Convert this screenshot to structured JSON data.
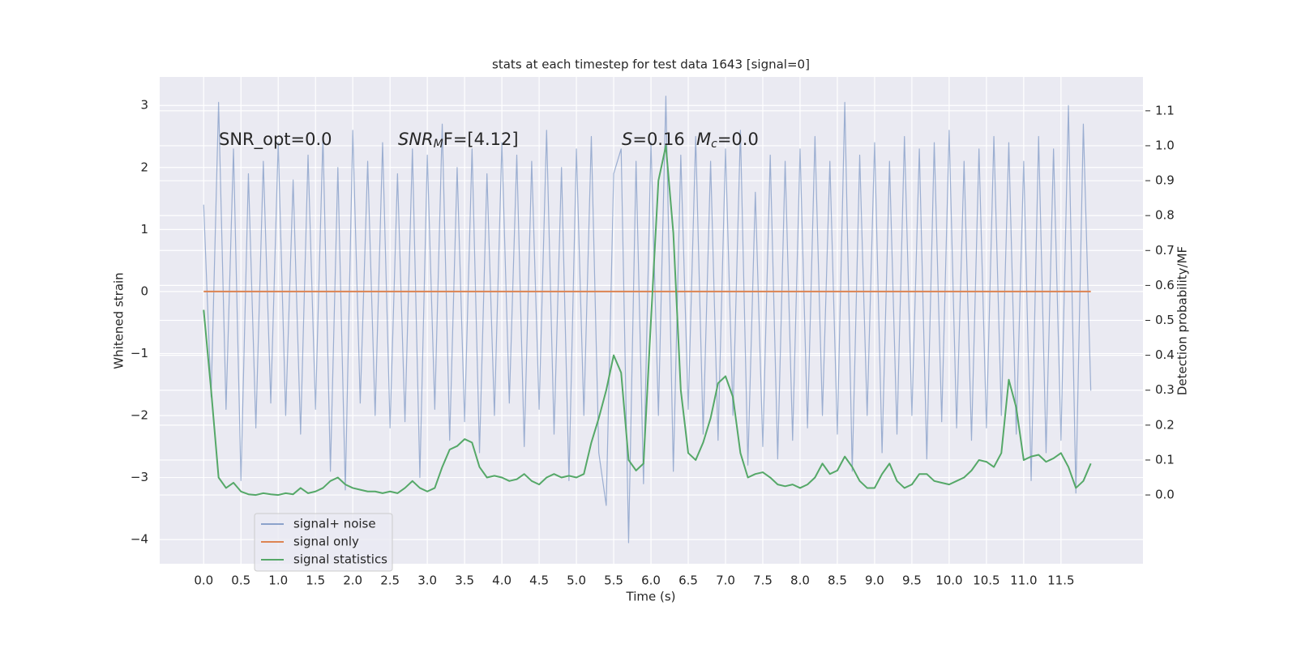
{
  "chart_data": {
    "type": "line",
    "title": "stats at each timestep for test data 1643 [signal=0]",
    "xlabel": "Time (s)",
    "ylabel": "Whitened strain",
    "y2label": "Detection probability/MF",
    "annotations": [
      [
        "SNR_opt=0.0"
      ],
      [
        "SNR",
        "M",
        "F=[4.12]"
      ],
      [
        "S",
        "=0.16"
      ],
      [
        "M",
        "c",
        "=0.0"
      ]
    ],
    "grid": true,
    "legend": "lower left",
    "xlim": [
      -0.59,
      12.6
    ],
    "ylim": [
      -4.39,
      3.46
    ],
    "y2lim": [
      -0.197,
      1.197
    ],
    "xticks": [
      {
        "value": 0,
        "label": "0.0"
      },
      0.5,
      {
        "value": 1,
        "label": "1.0"
      },
      1.5,
      {
        "value": 2,
        "label": "2.0"
      },
      2.5,
      {
        "value": 3,
        "label": "3.0"
      },
      3.5,
      {
        "value": 4,
        "label": "4.0"
      },
      4.5,
      {
        "value": 5,
        "label": "5.0"
      },
      5.5,
      {
        "value": 6,
        "label": "6.0"
      },
      6.5,
      {
        "value": 7,
        "label": "7.0"
      },
      7.5,
      {
        "value": 8,
        "label": "8.0"
      },
      8.5,
      {
        "value": 9,
        "label": "9.0"
      },
      9.5,
      {
        "value": 10,
        "label": "10.0"
      },
      10.5,
      {
        "value": 11,
        "label": "11.0"
      },
      11.5
    ],
    "yticks": [
      {
        "value": -4,
        "label": "−4"
      },
      {
        "value": -3,
        "label": "−3"
      },
      {
        "value": -2,
        "label": "−2"
      },
      {
        "value": -1,
        "label": "−1"
      },
      0,
      1,
      2,
      3
    ],
    "y2ticks": [
      {
        "value": 0,
        "label": "0.0"
      },
      0.1,
      0.2,
      0.3,
      0.4,
      0.5,
      0.6,
      0.7,
      0.8,
      0.9,
      {
        "value": 1,
        "label": "1.0"
      },
      1.1
    ],
    "x": [
      0,
      0.1,
      0.2,
      0.3,
      0.4,
      0.5,
      0.6,
      0.7,
      0.8,
      0.9,
      1,
      1.1,
      1.2,
      1.3,
      1.4,
      1.5,
      1.6,
      1.7,
      1.8,
      1.9,
      2,
      2.1,
      2.2,
      2.3,
      2.4,
      2.5,
      2.6,
      2.7,
      2.8,
      2.9,
      3,
      3.1,
      3.2,
      3.3,
      3.4,
      3.5,
      3.6,
      3.7,
      3.8,
      3.9,
      4,
      4.1,
      4.2,
      4.3,
      4.4,
      4.5,
      4.6,
      4.7,
      4.8,
      4.9,
      5,
      5.1,
      5.2,
      5.3,
      5.4,
      5.5,
      5.6,
      5.7,
      5.8,
      5.9,
      6,
      6.1,
      6.2,
      6.3,
      6.4,
      6.5,
      6.6,
      6.7,
      6.8,
      6.9,
      7,
      7.1,
      7.2,
      7.3,
      7.4,
      7.5,
      7.6,
      7.7,
      7.8,
      7.9,
      8,
      8.1,
      8.2,
      8.3,
      8.4,
      8.5,
      8.6,
      8.7,
      8.8,
      8.9,
      9,
      9.1,
      9.2,
      9.3,
      9.4,
      9.5,
      9.6,
      9.7,
      9.8,
      9.9,
      10,
      10.1,
      10.2,
      10.3,
      10.4,
      10.5,
      10.6,
      10.7,
      10.8,
      10.9,
      11,
      11.1,
      11.2,
      11.3,
      11.4,
      11.5,
      11.6,
      11.7,
      11.8,
      11.9
    ],
    "series": [
      {
        "name": "signal+ noise",
        "color": "#4c72b0",
        "values": [
          1.4,
          -1.7,
          3.05,
          -1.9,
          2.3,
          -3.05,
          1.9,
          -2.2,
          2.1,
          -1.8,
          2.4,
          -2.0,
          1.8,
          -2.3,
          2.2,
          -1.9,
          2.5,
          -2.9,
          2.0,
          -3.2,
          2.6,
          -1.8,
          2.1,
          -2.0,
          2.4,
          -2.2,
          1.9,
          -2.1,
          2.3,
          -3.0,
          2.2,
          -1.9,
          2.7,
          -2.4,
          2.0,
          -2.1,
          2.3,
          -2.6,
          1.9,
          -2.0,
          2.4,
          -1.8,
          2.2,
          -2.5,
          2.1,
          -1.9,
          2.6,
          -2.3,
          2.0,
          -3.05,
          2.3,
          -2.0,
          2.5,
          -2.6,
          -3.45,
          1.9,
          2.3,
          -4.05,
          2.1,
          -3.1,
          2.4,
          -2.0,
          3.15,
          -2.9,
          2.2,
          -1.9,
          2.5,
          -2.3,
          2.1,
          -2.4,
          2.3,
          -2.0,
          2.6,
          -2.8,
          1.6,
          -2.5,
          2.2,
          -2.7,
          2.1,
          -2.4,
          2.3,
          -2.2,
          2.5,
          -2.0,
          2.1,
          -2.3,
          3.05,
          -2.9,
          2.2,
          -2.0,
          2.4,
          -2.6,
          2.1,
          -2.3,
          2.5,
          -2.0,
          2.3,
          -2.7,
          2.4,
          -2.1,
          2.6,
          -2.2,
          2.1,
          -2.4,
          2.3,
          -2.2,
          2.5,
          -2.0,
          2.4,
          -2.3,
          2.1,
          -3.05,
          2.5,
          -2.6,
          2.3,
          -2.4,
          3.0,
          -3.25,
          2.7,
          -1.6
        ]
      },
      {
        "name": "signal only",
        "color": "#dd8452",
        "x": [
          0,
          11.9
        ],
        "values": [
          0,
          0
        ]
      },
      {
        "name": "signal statistics",
        "color": "#55a868",
        "axis": "y2",
        "values": [
          0.53,
          0.3,
          0.05,
          0.02,
          0.035,
          0.01,
          0.002,
          0,
          0.005,
          0.002,
          0,
          0.005,
          0.002,
          0.02,
          0.005,
          0.01,
          0.02,
          0.04,
          0.05,
          0.03,
          0.02,
          0.015,
          0.01,
          0.01,
          0.005,
          0.01,
          0.005,
          0.02,
          0.04,
          0.02,
          0.01,
          0.02,
          0.08,
          0.13,
          0.14,
          0.16,
          0.15,
          0.08,
          0.05,
          0.055,
          0.05,
          0.04,
          0.045,
          0.06,
          0.04,
          0.03,
          0.05,
          0.06,
          0.05,
          0.055,
          0.05,
          0.06,
          0.15,
          0.22,
          0.3,
          0.4,
          0.35,
          0.1,
          0.07,
          0.09,
          0.5,
          0.9,
          1.0,
          0.75,
          0.3,
          0.12,
          0.1,
          0.15,
          0.22,
          0.32,
          0.34,
          0.28,
          0.12,
          0.05,
          0.06,
          0.065,
          0.05,
          0.03,
          0.025,
          0.03,
          0.02,
          0.03,
          0.05,
          0.09,
          0.06,
          0.07,
          0.11,
          0.08,
          0.04,
          0.02,
          0.02,
          0.06,
          0.09,
          0.04,
          0.02,
          0.03,
          0.06,
          0.06,
          0.04,
          0.035,
          0.03,
          0.04,
          0.05,
          0.07,
          0.1,
          0.095,
          0.08,
          0.12,
          0.33,
          0.25,
          0.1,
          0.11,
          0.115,
          0.095,
          0.105,
          0.12,
          0.08,
          0.02,
          0.04,
          0.09
        ]
      }
    ]
  }
}
